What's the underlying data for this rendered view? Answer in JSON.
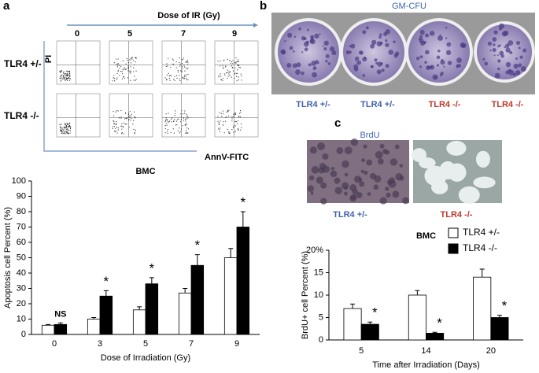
{
  "chart_data": [
    {
      "type": "bar",
      "title": "BMC",
      "x_label": "Dose of Irradiation (Gy)",
      "y_label": "Apoptosis cell Percent (%)",
      "categories": [
        "0",
        "3",
        "5",
        "7",
        "9"
      ],
      "series": [
        {
          "color": "#ffffff",
          "values": [
            6,
            10,
            16,
            27,
            50
          ],
          "errors": [
            0.5,
            1,
            2,
            3,
            6
          ]
        },
        {
          "color": "#000000",
          "values": [
            6.5,
            25,
            33,
            45,
            70
          ],
          "errors": [
            1,
            3.5,
            4,
            7,
            10
          ]
        }
      ],
      "annotations": [
        "NS",
        "*",
        "*",
        "*",
        "*"
      ],
      "ylim": [
        0,
        100
      ],
      "yticks": [
        0,
        10,
        20,
        30,
        40,
        50,
        60,
        70,
        80,
        90,
        100
      ]
    },
    {
      "type": "bar",
      "title": "BMC",
      "x_label": "Time after  Irradiation (Days)",
      "y_label": "BrdU+ cell Percent (%)",
      "categories": [
        "5",
        "14",
        "20"
      ],
      "series": [
        {
          "name": "TLR4 +/-",
          "color": "#ffffff",
          "values": [
            7,
            10,
            14
          ],
          "errors": [
            1,
            1,
            1.8
          ]
        },
        {
          "name": "TLR4 -/-",
          "color": "#000000",
          "values": [
            3.5,
            1.5,
            5
          ],
          "errors": [
            0.5,
            0.2,
            0.5
          ]
        }
      ],
      "annotations": [
        "*",
        "*",
        "*"
      ],
      "legend": "upper right",
      "ylim": [
        0,
        20
      ],
      "yticks": [
        0,
        5,
        10,
        15,
        {
          "value": 20,
          "label": "20%"
        }
      ]
    }
  ],
  "figure": {
    "panel_labels": [
      "a",
      "b",
      "c"
    ],
    "flow": {
      "title": "Dose of IR (Gy)",
      "doses": [
        "0",
        "5",
        "7",
        "9"
      ],
      "rows": [
        "TLR4 +/-",
        "TLR4 -/-"
      ],
      "y_label": "PI",
      "x_label": "AnnV-FITC"
    },
    "colony": {
      "title": "GM-CFU",
      "labels": [
        "TLR4 +/-",
        "TLR4 +/-",
        "TLR4 -/-",
        "TLR4 -/-"
      ]
    },
    "brdu": {
      "title": "BrdU",
      "labels": [
        "TLR4 +/-",
        "TLR4 -/-"
      ]
    }
  }
}
